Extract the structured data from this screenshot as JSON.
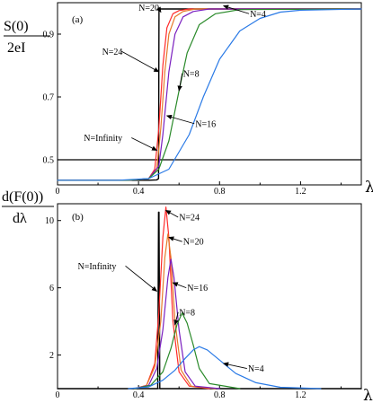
{
  "chart_data": [
    {
      "type": "line",
      "panel_label": "(a)",
      "ylabel_top": "S(0)",
      "ylabel_bottom": "2eI",
      "xlabel": "λ",
      "xlim": [
        0,
        1.5
      ],
      "ylim": [
        0.42,
        1.0
      ],
      "xticks": [
        0,
        0.4,
        0.8,
        1.2
      ],
      "xtick_labels": [
        "0",
        "0.4",
        "0.8",
        "1.2"
      ],
      "yticks": [
        0.5,
        0.7,
        0.9
      ],
      "ytick_labels": [
        "0.5",
        "0.7",
        "0.9"
      ],
      "hline": 0.5,
      "series": [
        {
          "name": "N=Infinity",
          "color": "#000000",
          "x": [
            0,
            0.45,
            0.49,
            0.499,
            0.501,
            1.5
          ],
          "y": [
            0.435,
            0.435,
            0.436,
            0.44,
            0.98,
            0.98
          ]
        },
        {
          "name": "N=24",
          "color": "#ff2a2a",
          "x": [
            0,
            0.35,
            0.45,
            0.48,
            0.5,
            0.52,
            0.54,
            0.57,
            0.6,
            0.65,
            1.5
          ],
          "y": [
            0.435,
            0.435,
            0.44,
            0.47,
            0.6,
            0.8,
            0.92,
            0.965,
            0.975,
            0.98,
            0.98
          ]
        },
        {
          "name": "N=20",
          "color": "#e67a2a",
          "x": [
            0,
            0.35,
            0.45,
            0.49,
            0.51,
            0.53,
            0.55,
            0.58,
            0.62,
            0.68,
            1.5
          ],
          "y": [
            0.435,
            0.435,
            0.44,
            0.47,
            0.6,
            0.78,
            0.9,
            0.955,
            0.972,
            0.98,
            0.98
          ]
        },
        {
          "name": "N=16",
          "color": "#7a1fbf",
          "x": [
            0,
            0.35,
            0.45,
            0.5,
            0.52,
            0.55,
            0.58,
            0.62,
            0.67,
            0.75,
            1.5
          ],
          "y": [
            0.435,
            0.435,
            0.44,
            0.48,
            0.58,
            0.78,
            0.9,
            0.955,
            0.972,
            0.98,
            0.98
          ]
        },
        {
          "name": "N=8",
          "color": "#2a8a2a",
          "x": [
            0,
            0.35,
            0.45,
            0.5,
            0.55,
            0.6,
            0.64,
            0.7,
            0.78,
            0.9,
            1.5
          ],
          "y": [
            0.435,
            0.435,
            0.44,
            0.47,
            0.56,
            0.72,
            0.84,
            0.93,
            0.965,
            0.978,
            0.98
          ]
        },
        {
          "name": "N=4",
          "color": "#2a7ae6",
          "x": [
            0,
            0.3,
            0.45,
            0.55,
            0.65,
            0.72,
            0.8,
            0.9,
            1.0,
            1.1,
            1.2,
            1.5
          ],
          "y": [
            0.435,
            0.435,
            0.44,
            0.47,
            0.58,
            0.7,
            0.82,
            0.91,
            0.95,
            0.97,
            0.976,
            0.98
          ]
        }
      ],
      "annotations": [
        {
          "text": "N=20",
          "x": 0.4,
          "y": 0.985,
          "tx": 0.51,
          "ty": 0.97
        },
        {
          "text": "N=24",
          "x": 0.22,
          "y": 0.845,
          "tx": 0.5,
          "ty": 0.78
        },
        {
          "text": "N=8",
          "x": 0.62,
          "y": 0.775,
          "tx": 0.6,
          "ty": 0.72
        },
        {
          "text": "N=16",
          "x": 0.68,
          "y": 0.615,
          "tx": 0.54,
          "ty": 0.64
        },
        {
          "text": "N=4",
          "x": 0.95,
          "y": 0.965,
          "tx": 0.82,
          "ty": 0.99
        },
        {
          "text": "N=Infinity",
          "x": 0.13,
          "y": 0.57,
          "tx": 0.49,
          "ty": 0.53
        }
      ]
    },
    {
      "type": "line",
      "panel_label": "(b)",
      "ylabel_top": "d(F(0))",
      "ylabel_bottom": "dλ",
      "xlabel": "λ",
      "xlim": [
        0,
        1.5
      ],
      "ylim": [
        0,
        11
      ],
      "xticks": [
        0,
        0.4,
        0.8,
        1.2
      ],
      "xtick_labels": [
        "0",
        "0.4",
        "0.8",
        "1.2"
      ],
      "yticks": [
        2,
        6,
        10
      ],
      "ytick_labels": [
        "2",
        "6",
        "10"
      ],
      "series": [
        {
          "name": "N=Infinity",
          "color": "#000000",
          "x": [
            0,
            0.495,
            0.499,
            0.501,
            0.505,
            1.5
          ],
          "y": [
            0,
            0,
            10.5,
            10.5,
            0,
            0
          ]
        },
        {
          "name": "N=24",
          "color": "#ff2a2a",
          "x": [
            0.38,
            0.44,
            0.48,
            0.5,
            0.52,
            0.535,
            0.55,
            0.57,
            0.6,
            0.65,
            0.75
          ],
          "y": [
            0,
            0.2,
            1.5,
            4.5,
            9.0,
            10.8,
            9.0,
            4.0,
            1.0,
            0.15,
            0
          ]
        },
        {
          "name": "N=20",
          "color": "#e67a2a",
          "x": [
            0.38,
            0.44,
            0.48,
            0.51,
            0.53,
            0.545,
            0.56,
            0.58,
            0.61,
            0.66,
            0.78
          ],
          "y": [
            0,
            0.2,
            1.3,
            4.0,
            7.8,
            9.2,
            7.8,
            4.0,
            1.1,
            0.15,
            0
          ]
        },
        {
          "name": "N=16",
          "color": "#7a1fbf",
          "x": [
            0.38,
            0.45,
            0.49,
            0.52,
            0.545,
            0.56,
            0.575,
            0.6,
            0.63,
            0.68,
            0.8
          ],
          "y": [
            0,
            0.2,
            1.2,
            3.5,
            6.6,
            7.7,
            6.6,
            3.5,
            1.0,
            0.15,
            0
          ]
        },
        {
          "name": "N=8",
          "color": "#2a8a2a",
          "x": [
            0.38,
            0.46,
            0.52,
            0.56,
            0.59,
            0.615,
            0.64,
            0.67,
            0.7,
            0.75,
            0.9
          ],
          "y": [
            0,
            0.2,
            1.0,
            2.4,
            3.8,
            4.5,
            3.9,
            2.6,
            1.2,
            0.3,
            0
          ]
        },
        {
          "name": "N=4",
          "color": "#2a7ae6",
          "x": [
            0.35,
            0.45,
            0.52,
            0.58,
            0.63,
            0.67,
            0.7,
            0.74,
            0.8,
            0.88,
            0.98,
            1.1,
            1.3
          ],
          "y": [
            0,
            0.1,
            0.5,
            1.1,
            1.8,
            2.3,
            2.5,
            2.3,
            1.7,
            0.9,
            0.35,
            0.08,
            0
          ]
        }
      ],
      "annotations": [
        {
          "text": "N=24",
          "x": 0.6,
          "y": 10.2,
          "tx": 0.535,
          "ty": 10.6
        },
        {
          "text": "N=20",
          "x": 0.62,
          "y": 8.75,
          "tx": 0.55,
          "ty": 9.0
        },
        {
          "text": "N=Infinity",
          "x": 0.1,
          "y": 7.3,
          "tx": 0.49,
          "ty": 5.8
        },
        {
          "text": "N=16",
          "x": 0.64,
          "y": 6.0,
          "tx": 0.57,
          "ty": 6.3
        },
        {
          "text": "N=8",
          "x": 0.6,
          "y": 4.55,
          "tx": 0.58,
          "ty": 3.8
        },
        {
          "text": "N=4",
          "x": 0.94,
          "y": 1.2,
          "tx": 0.82,
          "ty": 1.5
        }
      ]
    }
  ]
}
